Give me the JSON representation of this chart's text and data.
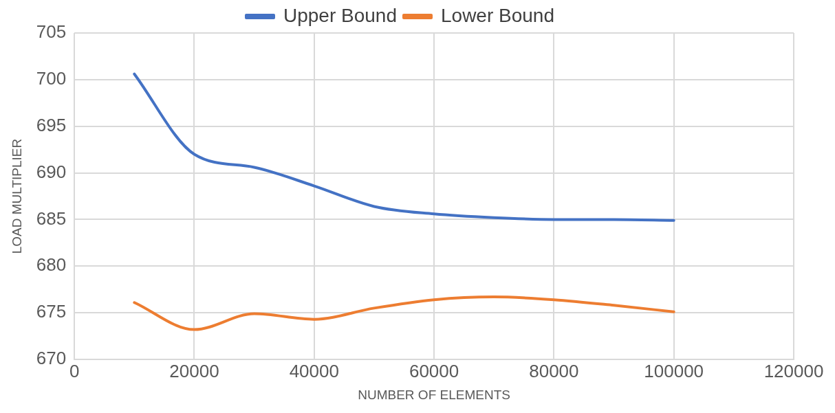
{
  "chart_data": {
    "type": "line",
    "xlabel": "NUMBER OF ELEMENTS",
    "ylabel": "LOAD MULTIPLIER",
    "x": [
      10000,
      20000,
      30000,
      40000,
      50000,
      60000,
      70000,
      80000,
      90000,
      100000
    ],
    "series": [
      {
        "name": "Upper Bound",
        "color": "#4472c4",
        "values": [
          700.6,
          692.0,
          690.6,
          688.6,
          686.4,
          685.6,
          685.2,
          685.0,
          685.0,
          684.9
        ]
      },
      {
        "name": "Lower Bound",
        "color": "#ed7d31",
        "values": [
          676.1,
          673.2,
          674.9,
          674.3,
          675.5,
          676.4,
          676.7,
          676.4,
          675.8,
          675.1
        ]
      }
    ],
    "xlim": [
      0,
      120000
    ],
    "xticks": [
      0,
      20000,
      40000,
      60000,
      80000,
      100000,
      120000
    ],
    "ylim": [
      670,
      705
    ],
    "yticks": [
      670,
      675,
      680,
      685,
      690,
      695,
      700,
      705
    ],
    "grid": true,
    "legend": "top",
    "marker": "none",
    "line_style": "solid"
  }
}
